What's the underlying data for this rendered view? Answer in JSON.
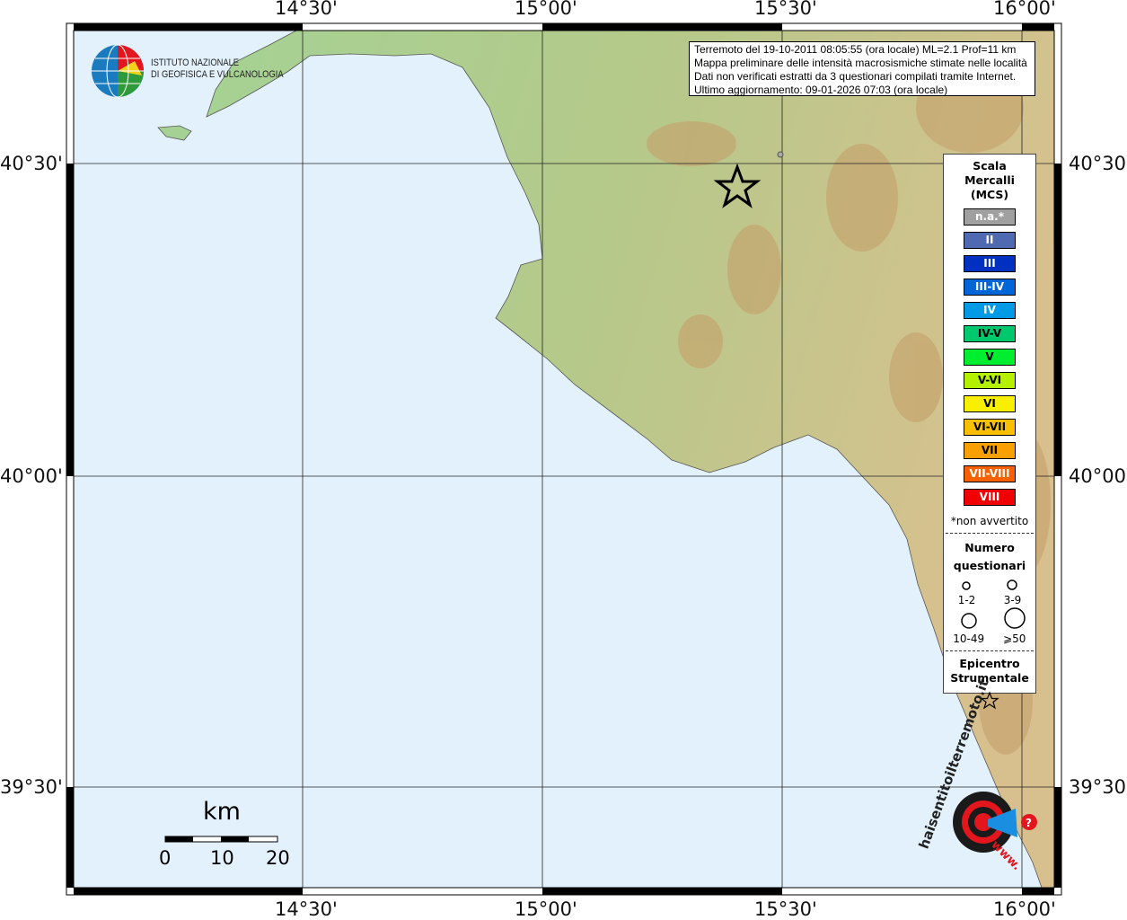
{
  "map": {
    "lon_ticks": [
      "14°30'",
      "15°00'",
      "15°30'",
      "16°00'"
    ],
    "lat_ticks": [
      "40°30'",
      "40°00'",
      "39°30'"
    ],
    "colors": {
      "sea": "#e2f1fc",
      "land_low": "#9fcf8c",
      "land_high": "#c7a16e"
    },
    "epicenter_icon": "star-icon"
  },
  "info": {
    "line1": "Terremoto del 19-10-2011 08:05:55 (ora locale) ML=2.1 Prof=11 km",
    "line2": "Mappa preliminare delle intensità macrosismiche stimate nelle località",
    "line3": "Dati non verificati estratti da 3 questionari compilati tramite Internet.",
    "line4": "Ultimo aggiornamento: 09-01-2026 07:03 (ora locale)"
  },
  "logo": {
    "line1": "ISTITUTO NAZIONALE",
    "line2": "DI GEOFISICA E VULCANOLOGIA"
  },
  "badge": {
    "text": "haisentitoilterremoto.it",
    "prefix": "www."
  },
  "legend": {
    "title1": "Scala",
    "title2": "Mercalli",
    "title3": "(MCS)",
    "classes": [
      {
        "label": "n.a.*",
        "color": "#a0a0a0"
      },
      {
        "label": "II",
        "color": "#4f6ab0"
      },
      {
        "label": "III",
        "color": "#0030c0"
      },
      {
        "label": "III-IV",
        "color": "#0066d8"
      },
      {
        "label": "IV",
        "color": "#009ae6"
      },
      {
        "label": "IV-V",
        "color": "#00c86c"
      },
      {
        "label": "V",
        "color": "#00ee30"
      },
      {
        "label": "V-VI",
        "color": "#b4f000"
      },
      {
        "label": "VI",
        "color": "#f8f000"
      },
      {
        "label": "VI-VII",
        "color": "#f8c000"
      },
      {
        "label": "VII",
        "color": "#f8a000"
      },
      {
        "label": "VII-VIII",
        "color": "#f86000"
      },
      {
        "label": "VIII",
        "color": "#f00000"
      }
    ],
    "note": "*non avvertito",
    "count_title1": "Numero",
    "count_title2": "questionari",
    "counts": [
      "1-2",
      "3-9",
      "10-49",
      "⩾50"
    ],
    "epi_title1": "Epicentro",
    "epi_title2": "Strumentale"
  },
  "scale": {
    "unit": "km",
    "labels": [
      "0",
      "10",
      "20"
    ]
  }
}
